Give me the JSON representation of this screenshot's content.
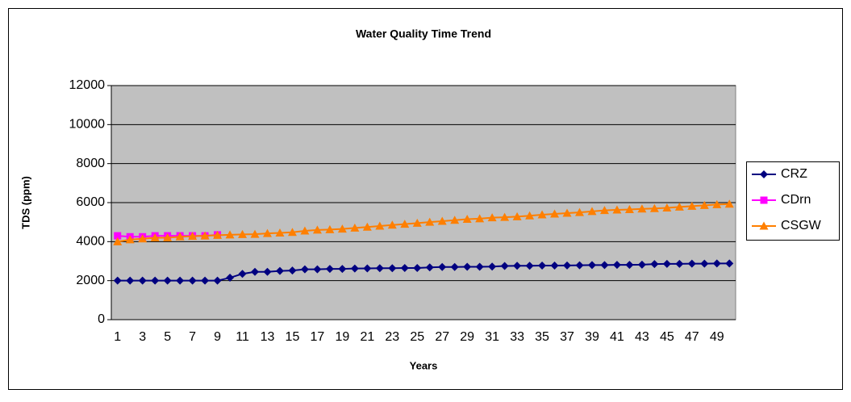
{
  "chart_data": {
    "type": "line",
    "title": "Water Quality Time Trend",
    "y_label": "TDS (ppm)",
    "x_label": "Years",
    "categories": [
      1,
      null,
      3,
      null,
      5,
      null,
      7,
      null,
      9,
      null,
      11,
      null,
      13,
      null,
      15,
      null,
      17,
      null,
      19,
      null,
      21,
      null,
      23,
      null,
      25,
      null,
      27,
      null,
      29,
      null,
      31,
      null,
      33,
      null,
      35,
      null,
      37,
      null,
      39,
      null,
      41,
      null,
      43,
      null,
      45,
      null,
      47,
      null,
      49,
      null
    ],
    "series": [
      {
        "name": "CRZ",
        "color": "#000080",
        "marker": "diamond",
        "values": [
          2000,
          2000,
          2000,
          2000,
          2000,
          2000,
          2000,
          2000,
          2000,
          2150,
          2350,
          2450,
          2450,
          2500,
          2520,
          2580,
          2580,
          2600,
          2600,
          2620,
          2630,
          2640,
          2640,
          2650,
          2650,
          2680,
          2700,
          2700,
          2710,
          2710,
          2720,
          2750,
          2760,
          2760,
          2770,
          2770,
          2780,
          2790,
          2800,
          2800,
          2810,
          2810,
          2820,
          2850,
          2860,
          2860,
          2870,
          2870,
          2880,
          2880
        ]
      },
      {
        "name": "CDrn",
        "color": "#ff00ff",
        "marker": "square",
        "values": [
          4300,
          4250,
          4250,
          4300,
          4300,
          4300,
          4300,
          4300,
          4350,
          null,
          null,
          null,
          null,
          null,
          null,
          null,
          null,
          null,
          null,
          null,
          null,
          null,
          null,
          null,
          null,
          null,
          null,
          null,
          null,
          null,
          null,
          null,
          null,
          null,
          null,
          null,
          null,
          null,
          null,
          null,
          null,
          null,
          null,
          null,
          null,
          null,
          null,
          null,
          null,
          null
        ]
      },
      {
        "name": "CSGW",
        "color": "#ff7f00",
        "marker": "triangle",
        "values": [
          4000,
          4100,
          4150,
          4200,
          4200,
          4250,
          4280,
          4300,
          4330,
          4350,
          4370,
          4380,
          4420,
          4450,
          4480,
          4550,
          4600,
          4620,
          4650,
          4700,
          4750,
          4800,
          4850,
          4900,
          4950,
          5000,
          5050,
          5100,
          5150,
          5180,
          5230,
          5250,
          5280,
          5330,
          5380,
          5420,
          5460,
          5500,
          5550,
          5600,
          5630,
          5650,
          5680,
          5700,
          5730,
          5780,
          5820,
          5860,
          5900,
          5930
        ]
      }
    ],
    "ylim": [
      0,
      12000
    ],
    "yticks": [
      0,
      2000,
      4000,
      6000,
      8000,
      10000,
      12000
    ],
    "grid": true,
    "legend": "right"
  }
}
